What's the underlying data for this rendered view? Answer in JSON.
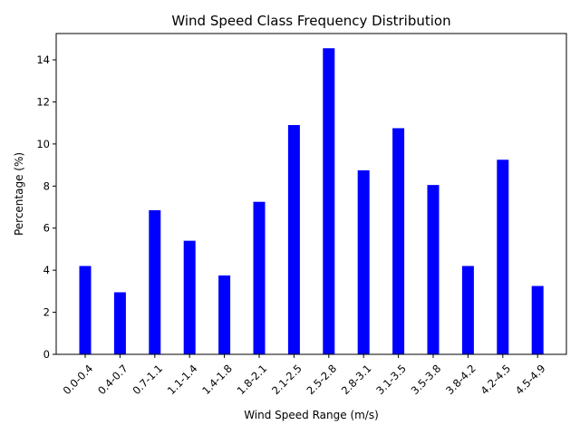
{
  "chart_data": {
    "type": "bar",
    "title": "Wind Speed Class Frequency Distribution",
    "xlabel": "Wind Speed Range (m/s)",
    "ylabel": "Percentage (%)",
    "categories": [
      "0.0-0.4",
      "0.4-0.7",
      "0.7-1.1",
      "1.1-1.4",
      "1.4-1.8",
      "1.8-2.1",
      "2.1-2.5",
      "2.5-2.8",
      "2.8-3.1",
      "3.1-3.5",
      "3.5-3.8",
      "3.8-4.2",
      "4.2-4.5",
      "4.5-4.9"
    ],
    "values": [
      4.2,
      2.95,
      6.85,
      5.4,
      3.75,
      7.25,
      10.9,
      14.55,
      8.75,
      10.75,
      8.05,
      4.2,
      9.25,
      3.25
    ],
    "ylim": [
      0,
      15.25
    ],
    "yticks": [
      0,
      2,
      4,
      6,
      8,
      10,
      12,
      14
    ],
    "bar_color": "#0000ff",
    "grid": false,
    "legend": "none"
  }
}
